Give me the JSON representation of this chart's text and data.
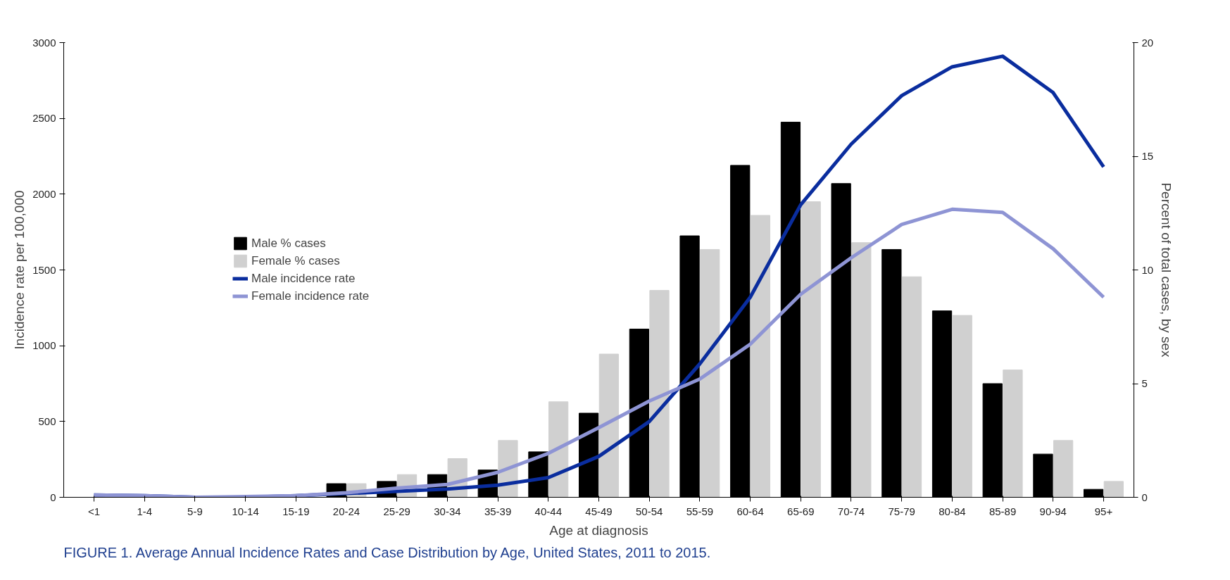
{
  "chart_data": {
    "type": "bar",
    "title": "FIGURE 1. Average Annual Incidence Rates and Case Distribution by Age, United States, 2011 to 2015.",
    "xlabel": "Age at diagnosis",
    "ylabel": "Incidence rate per 100,000",
    "y2label": "Percent of total cases, by sex",
    "categories": [
      "<1",
      "1-4",
      "5-9",
      "10-14",
      "15-19",
      "20-24",
      "25-29",
      "30-34",
      "35-39",
      "40-44",
      "45-49",
      "50-54",
      "55-59",
      "60-64",
      "65-69",
      "70-74",
      "75-79",
      "80-84",
      "85-89",
      "90-94",
      "95+"
    ],
    "series": [
      {
        "name": "Male % cases",
        "axis": "y2",
        "color": "#000000",
        "values": [
          null,
          null,
          null,
          null,
          null,
          0.6,
          0.7,
          1.0,
          1.2,
          2.0,
          3.7,
          7.4,
          11.5,
          14.6,
          16.5,
          13.8,
          10.9,
          8.2,
          5.0,
          1.9,
          0.35
        ]
      },
      {
        "name": "Female % cases",
        "axis": "y2",
        "color": "#d0d0d0",
        "values": [
          null,
          null,
          null,
          null,
          null,
          0.6,
          1.0,
          1.7,
          2.5,
          4.2,
          6.3,
          9.1,
          10.9,
          12.4,
          13.0,
          11.2,
          9.7,
          8.0,
          5.6,
          2.5,
          0.7
        ]
      },
      {
        "name": "Male incidence rate",
        "type": "line",
        "color": "#0a2d9e",
        "values": [
          15,
          10,
          0,
          0,
          10,
          25,
          40,
          55,
          80,
          130,
          270,
          500,
          880,
          1320,
          1930,
          2330,
          2650,
          2840,
          2910,
          2670,
          2180
        ]
      },
      {
        "name": "Female incidence rate",
        "type": "line",
        "color": "#8e94d4",
        "values": [
          15,
          10,
          0,
          5,
          10,
          30,
          60,
          85,
          165,
          290,
          460,
          635,
          780,
          1010,
          1340,
          1580,
          1800,
          1900,
          1880,
          1640,
          1320
        ]
      }
    ],
    "ylim": [
      0,
      3000
    ],
    "yticks": [
      0,
      500,
      1000,
      1500,
      2000,
      2500,
      3000
    ],
    "y2lim": [
      0,
      20
    ],
    "y2ticks": [
      0,
      5,
      10,
      15,
      20
    ],
    "grid": false,
    "legend": "left"
  }
}
